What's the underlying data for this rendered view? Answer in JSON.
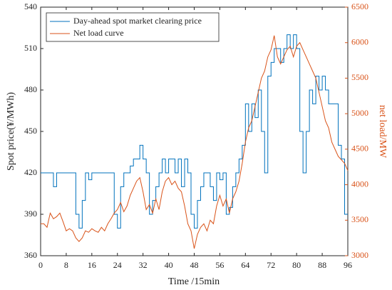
{
  "chart_data": {
    "type": "line",
    "xlabel": "Time /15min",
    "ylabel": "Spot price(¥/MWh)",
    "y2label": "net load/MW",
    "x": [
      0,
      1,
      2,
      3,
      4,
      5,
      6,
      7,
      8,
      9,
      10,
      11,
      12,
      13,
      14,
      15,
      16,
      17,
      18,
      19,
      20,
      21,
      22,
      23,
      24,
      25,
      26,
      27,
      28,
      29,
      30,
      31,
      32,
      33,
      34,
      35,
      36,
      37,
      38,
      39,
      40,
      41,
      42,
      43,
      44,
      45,
      46,
      47,
      48,
      49,
      50,
      51,
      52,
      53,
      54,
      55,
      56,
      57,
      58,
      59,
      60,
      61,
      62,
      63,
      64,
      65,
      66,
      67,
      68,
      69,
      70,
      71,
      72,
      73,
      74,
      75,
      76,
      77,
      78,
      79,
      80,
      81,
      82,
      83,
      84,
      85,
      86,
      87,
      88,
      89,
      90,
      91,
      92,
      93,
      94,
      95,
      96
    ],
    "xlim": [
      0,
      96
    ],
    "xticks": [
      0,
      8,
      16,
      24,
      32,
      40,
      48,
      56,
      64,
      72,
      80,
      88,
      96
    ],
    "ylim": [
      360,
      540
    ],
    "yticks": [
      360,
      390,
      420,
      450,
      480,
      510,
      540
    ],
    "y2lim": [
      3000,
      6500
    ],
    "y2ticks": [
      3000,
      3500,
      4000,
      4500,
      5000,
      5500,
      6000,
      6500
    ],
    "legend": "upper left",
    "series": [
      {
        "name": "Day-ahead spot market clearing price",
        "color": "#0072bd",
        "step": "post",
        "values": [
          420,
          420,
          420,
          420,
          410,
          420,
          420,
          420,
          420,
          420,
          420,
          390,
          380,
          400,
          420,
          415,
          420,
          420,
          420,
          420,
          420,
          420,
          420,
          390,
          380,
          410,
          420,
          420,
          425,
          430,
          430,
          440,
          430,
          420,
          390,
          400,
          410,
          420,
          430,
          420,
          430,
          430,
          420,
          430,
          410,
          430,
          420,
          390,
          380,
          400,
          410,
          420,
          420,
          410,
          400,
          420,
          415,
          420,
          390,
          395,
          410,
          420,
          430,
          440,
          470,
          450,
          470,
          460,
          480,
          450,
          420,
          490,
          500,
          510,
          510,
          500,
          510,
          520,
          510,
          520,
          510,
          450,
          420,
          450,
          480,
          470,
          490,
          480,
          490,
          480,
          470,
          470,
          470,
          440,
          430,
          390,
          390
        ]
      },
      {
        "name": "Net load curve",
        "color": "#d95319",
        "axis": "y2",
        "values": [
          3450,
          3450,
          3400,
          3600,
          3520,
          3550,
          3600,
          3480,
          3350,
          3380,
          3350,
          3250,
          3200,
          3250,
          3350,
          3330,
          3380,
          3350,
          3330,
          3400,
          3350,
          3450,
          3520,
          3600,
          3650,
          3750,
          3620,
          3700,
          3850,
          3950,
          4050,
          4100,
          3900,
          3650,
          3720,
          3600,
          3800,
          3650,
          3900,
          4050,
          4100,
          4000,
          4050,
          3950,
          3900,
          3700,
          3450,
          3350,
          3100,
          3300,
          3400,
          3450,
          3350,
          3500,
          3450,
          3700,
          3850,
          3700,
          3800,
          3600,
          3800,
          3900,
          4050,
          4300,
          4600,
          4800,
          4900,
          5100,
          5300,
          5500,
          5600,
          5800,
          5900,
          6100,
          5800,
          5700,
          5800,
          5900,
          5950,
          5800,
          5950,
          6000,
          5900,
          5800,
          5700,
          5600,
          5500,
          5300,
          5100,
          4900,
          4800,
          4600,
          4500,
          4400,
          4350,
          4300,
          4200
        ]
      }
    ]
  }
}
